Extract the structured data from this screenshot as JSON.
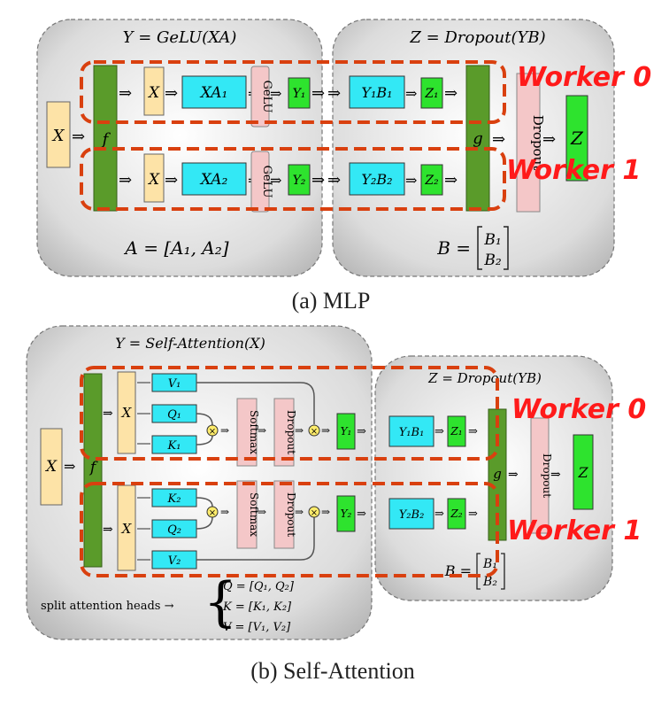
{
  "mlp": {
    "y_eq": "Y = GeLU(XA)",
    "z_eq": "Z = Dropout(YB)",
    "a_eq": "A = [A₁, A₂]",
    "b_eq_left": "B =",
    "b_row1": "B₁",
    "b_row2": "B₂",
    "x_input": "X",
    "f": "f",
    "g": "g",
    "z_out": "Z",
    "dropout": "Dropout",
    "row0": {
      "x": "X",
      "xa": "XA₁",
      "gelu": "GeLU",
      "y": "Y₁",
      "yb": "Y₁B₁",
      "z": "Z₁"
    },
    "row1": {
      "x": "X",
      "xa": "XA₂",
      "gelu": "GeLU",
      "y": "Y₂",
      "yb": "Y₂B₂",
      "z": "Z₂"
    },
    "worker0": "Worker 0",
    "worker1": "Worker 1",
    "caption": "(a) MLP"
  },
  "attn": {
    "y_eq": "Y = Self-Attention(X)",
    "z_eq": "Z = Dropout(YB)",
    "x_input": "X",
    "f": "f",
    "g": "g",
    "z_out": "Z",
    "dropout_out": "Dropout",
    "row0": {
      "x": "X",
      "v": "V₁",
      "q": "Q₁",
      "k": "K₁",
      "softmax": "Softmax",
      "dropout": "Dropout",
      "y": "Y₁",
      "yb": "Y₁B₁",
      "z": "Z₁"
    },
    "row1": {
      "x": "X",
      "k": "K₂",
      "q": "Q₂",
      "v": "V₂",
      "softmax": "Softmax",
      "dropout": "Dropout",
      "y": "Y₂",
      "yb": "Y₂B₂",
      "z": "Z₂"
    },
    "split_label": "split attention heads →",
    "q_eq": "Q = [Q₁, Q₂]",
    "k_eq": "K = [K₁, K₂]",
    "v_eq": "V = [V₁, V₂]",
    "b_eq_left": "B =",
    "b_row1": "B₁",
    "b_row2": "B₂",
    "worker0": "Worker 0",
    "worker1": "Worker 1",
    "caption": "(b) Self-Attention"
  },
  "colors": {
    "x_box": "#fde3a7",
    "cyan": "#33e8f5",
    "green": "#2ee32e",
    "dark_green": "#5a9b2a",
    "pink": "#f4c7c8",
    "worker": "#ff1a1a",
    "dash": "#d9400f"
  }
}
